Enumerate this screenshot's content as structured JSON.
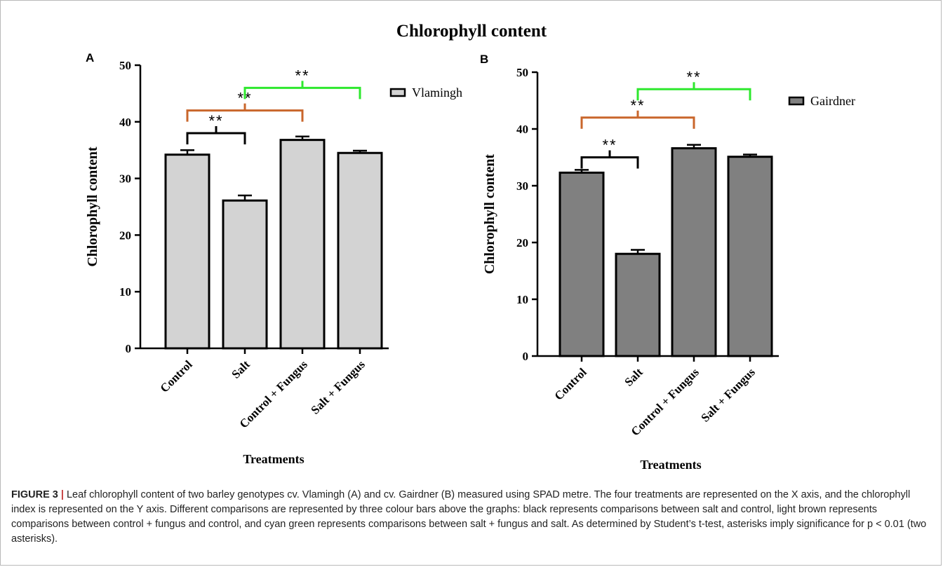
{
  "figure_title": "Chlorophyll content",
  "caption": {
    "label": "FIGURE 3",
    "separator": "|",
    "text": "Leaf chlorophyll content of two barley genotypes cv. Vlamingh (A) and cv. Gairdner (B) measured using SPAD metre. The four treatments are represented on the X axis, and the chlorophyll index is represented on the Y axis. Different comparisons are represented by three colour bars above the graphs: black represents comparisons between salt and control, light brown represents comparisons between control + fungus and control, and cyan green represents comparisons between salt + fungus and salt. As determined by Student’s t-test, asterisks imply significance for p < 0.01 (two asterisks)."
  },
  "chart_data": [
    {
      "type": "bar",
      "panel": "A",
      "categories": [
        "Control",
        "Salt",
        "Control + Fungus",
        "Salt + Fungus"
      ],
      "series": [
        {
          "name": "Vlamingh",
          "values": [
            34.2,
            26.1,
            36.8,
            34.5
          ],
          "errors": [
            0.8,
            0.9,
            0.6,
            0.4
          ],
          "color": "#d3d3d3"
        }
      ],
      "xlabel": "Treatments",
      "ylabel": "Chlorophyll content",
      "ylim": [
        0,
        50
      ],
      "yticks": [
        0,
        10,
        20,
        30,
        40,
        50
      ],
      "legend_position": "top-right",
      "significance": [
        {
          "from": 0,
          "to": 1,
          "label": "**",
          "color": "#000000",
          "level": 38
        },
        {
          "from": 0,
          "to": 2,
          "label": "**",
          "color": "#c9662b",
          "level": 42
        },
        {
          "from": 1,
          "to": 3,
          "label": "**",
          "color": "#2ee82e",
          "level": 46
        }
      ]
    },
    {
      "type": "bar",
      "panel": "B",
      "categories": [
        "Control",
        "Salt",
        "Control + Fungus",
        "Salt + Fungus"
      ],
      "series": [
        {
          "name": "Gairdner",
          "values": [
            32.3,
            18.0,
            36.6,
            35.1
          ],
          "errors": [
            0.5,
            0.7,
            0.6,
            0.4
          ],
          "color": "#808080"
        }
      ],
      "xlabel": "Treatments",
      "ylabel": "Chlorophyll content",
      "ylim": [
        0,
        50
      ],
      "yticks": [
        0,
        10,
        20,
        30,
        40,
        50
      ],
      "legend_position": "top-right",
      "significance": [
        {
          "from": 0,
          "to": 1,
          "label": "**",
          "color": "#000000",
          "level": 35
        },
        {
          "from": 0,
          "to": 2,
          "label": "**",
          "color": "#c9662b",
          "level": 42
        },
        {
          "from": 1,
          "to": 3,
          "label": "**",
          "color": "#2ee82e",
          "level": 47
        }
      ]
    }
  ]
}
